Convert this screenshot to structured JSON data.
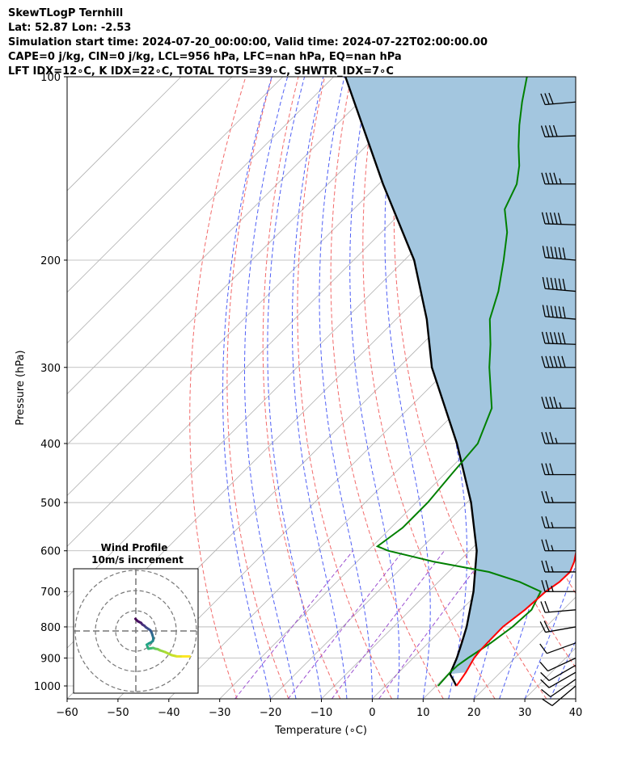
{
  "header": {
    "line1": "SkewTLogP Ternhill",
    "line2": "Lat: 52.87   Lon: -2.53",
    "line3": "Simulation start time: 2024-07-20_00:00:00, Valid time: 2024-07-22T02:00:00.00",
    "line4": "CAPE=0 j/kg, CIN=0 j/kg, LCL=956 hPa, LFC=nan hPa, EQ=nan hPa",
    "line5": "LFT IDX=12∘C, K IDX=22∘C, TOTAL TOTS=39∘C, SHWTR_IDX=7∘C"
  },
  "colors": {
    "temperature": "#ff0000",
    "dewpoint": "#008000",
    "parcel": "#000000",
    "cape_fill": "#a3c6df",
    "isotherm": "#b0b0b0",
    "dry_adiabat": "#f26a6a",
    "moist_adiabat": "#4f5ff5",
    "mixing_ratio": "#9b4fd0",
    "grid": "#b0b0b0"
  },
  "chart_data": {
    "type": "skewt",
    "title": "SkewTLogP Ternhill",
    "xlabel": "Temperature (∘C)",
    "ylabel": "Pressure (hPa)",
    "xlim": [
      -60,
      40
    ],
    "ylim": [
      1050,
      100
    ],
    "xticks": [
      -60,
      -50,
      -40,
      -30,
      -20,
      -10,
      0,
      10,
      20,
      30,
      40
    ],
    "yticks": [
      1000,
      900,
      800,
      700,
      600,
      500,
      400,
      300,
      200,
      100
    ],
    "grid": true,
    "temperature": {
      "p": [
        1000,
        985,
        950,
        925,
        900,
        875,
        850,
        800,
        750,
        700,
        675,
        650,
        625,
        600,
        550,
        500,
        450,
        400,
        350,
        300,
        275,
        250,
        225,
        200,
        180,
        170,
        160,
        150,
        140,
        130,
        120,
        110,
        100
      ],
      "t": [
        14.0,
        13.8,
        13.2,
        12.6,
        12.0,
        11.7,
        11.6,
        11.5,
        12.5,
        13.0,
        13.8,
        13.9,
        12.7,
        11.0,
        8.4,
        4.3,
        -1.0,
        -6.6,
        -13.1,
        -20.9,
        -26.0,
        -30.5,
        -35.5,
        -42.0,
        -47.8,
        -51.8,
        -55.9,
        -59.9,
        -63.2,
        -66.8,
        -69.7,
        -73.0,
        -77.0
      ]
    },
    "dewpoint": {
      "p": [
        1000,
        985,
        950,
        925,
        900,
        850,
        800,
        750,
        700,
        675,
        650,
        625,
        600,
        590,
        550,
        500,
        450,
        400,
        350,
        300,
        275,
        250,
        225,
        200,
        180,
        165,
        150,
        140,
        130,
        120,
        110,
        100
      ],
      "t": [
        10.4,
        10.3,
        10.1,
        10.2,
        10.8,
        12.3,
        13.4,
        13.8,
        12.0,
        6.0,
        -2.0,
        -15.0,
        -26.0,
        -29.0,
        -27.7,
        -27.7,
        -28.6,
        -29.5,
        -33.7,
        -42.2,
        -46.5,
        -51.6,
        -55.4,
        -60.5,
        -65.3,
        -70.3,
        -72.9,
        -76.0,
        -80.0,
        -84.0,
        -88.0,
        -92.0
      ]
    },
    "parcel": {
      "p": [
        1000,
        975,
        956,
        900,
        850,
        800,
        700,
        600,
        500,
        400,
        300,
        250,
        200,
        150,
        100
      ],
      "t": [
        14.0,
        12.0,
        10.4,
        8.6,
        6.6,
        4.4,
        -1.2,
        -8.6,
        -19.2,
        -33.6,
        -53.5,
        -64.0,
        -78.1,
        -99.2,
        -127.7
      ]
    },
    "cape_shading": "between temperature and parcel, 956 to 100 hPa",
    "wind_barbs": {
      "note": "barbs at right edge, speeds in knots, direction in degrees",
      "p": [
        1000,
        975,
        950,
        925,
        900,
        850,
        800,
        750,
        700,
        650,
        600,
        550,
        500,
        450,
        400,
        350,
        300,
        275,
        250,
        225,
        200,
        175,
        150,
        125,
        110
      ],
      "speed": [
        10,
        10,
        10,
        10,
        10,
        10,
        20,
        20,
        25,
        25,
        25,
        25,
        25,
        30,
        35,
        45,
        60,
        60,
        60,
        60,
        60,
        50,
        45,
        40,
        30
      ],
      "direction": [
        230,
        235,
        240,
        240,
        245,
        250,
        260,
        265,
        270,
        270,
        270,
        270,
        270,
        270,
        270,
        270,
        270,
        272,
        275,
        275,
        275,
        272,
        270,
        268,
        265
      ]
    },
    "wind_profile_inset": {
      "title": "Wind Profile",
      "subtitle": "10m/s increment",
      "rings": [
        10,
        20,
        30
      ],
      "u": [
        -0.2,
        1.0,
        2.6,
        3.2,
        4.2,
        5.0,
        6.2,
        7.2,
        7.8,
        8.2,
        8.6,
        8.6,
        8.4,
        7.6,
        6.4,
        5.4,
        6.2,
        7.4,
        8.6,
        9.6,
        10.8,
        12.0,
        14.4,
        17.8,
        20.4,
        23.2,
        26.6
      ],
      "v": [
        -6.0,
        -4.8,
        -4.0,
        -3.2,
        -2.6,
        -1.8,
        -1.0,
        -0.3,
        0.8,
        2.0,
        3.4,
        4.2,
        5.0,
        5.6,
        6.2,
        6.8,
        8.8,
        8.6,
        8.4,
        8.8,
        9.0,
        9.6,
        10.4,
        12.0,
        12.6,
        12.6,
        12.6
      ]
    }
  }
}
